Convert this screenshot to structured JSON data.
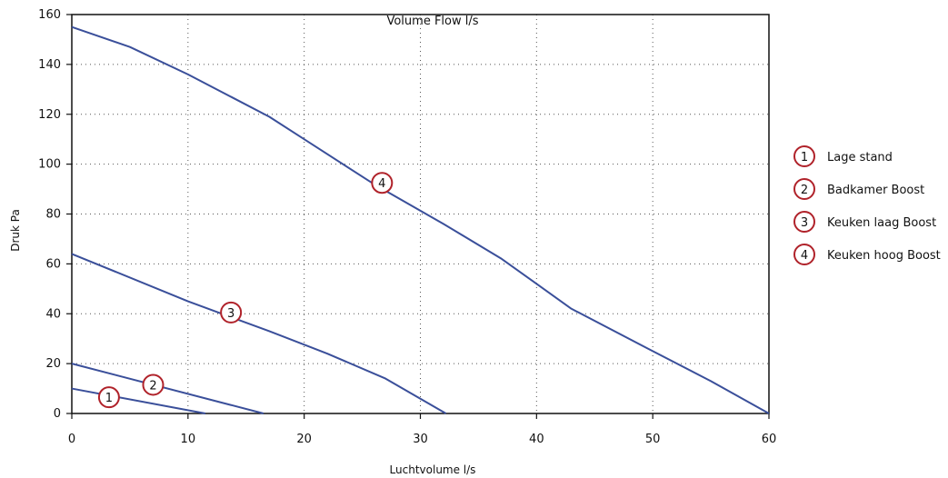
{
  "chart_data": {
    "type": "line",
    "title": "Volume Flow l/s",
    "xlabel": "Luchtvolume l/s",
    "ylabel": "Druk Pa",
    "xlim": [
      0,
      60
    ],
    "ylim": [
      0,
      160
    ],
    "xticks": [
      0,
      10,
      20,
      30,
      40,
      50,
      60
    ],
    "yticks": [
      0,
      20,
      40,
      60,
      80,
      100,
      120,
      140,
      160
    ],
    "grid": "dotted",
    "legend_position": "right",
    "line_color": "#3a4f9a",
    "marker_color": "#b0222a",
    "series": [
      {
        "marker": "1",
        "name": "Lage stand",
        "x": [
          0,
          11.5
        ],
        "y": [
          10,
          0
        ],
        "marker_pos": [
          3.2,
          6.5
        ]
      },
      {
        "marker": "2",
        "name": "Badkamer Boost",
        "x": [
          0,
          16.5
        ],
        "y": [
          20,
          0
        ],
        "marker_pos": [
          7.0,
          11.5
        ]
      },
      {
        "marker": "3",
        "name": "Keuken laag Boost",
        "x": [
          0,
          10,
          17,
          22,
          27,
          32.2
        ],
        "y": [
          64,
          45,
          33,
          24,
          14,
          0
        ],
        "marker_pos": [
          13.7,
          40.5
        ]
      },
      {
        "marker": "4",
        "name": "Keuken hoog Boost",
        "x": [
          0,
          5,
          10,
          17,
          20,
          26,
          32,
          37,
          40,
          43,
          50,
          55,
          60
        ],
        "y": [
          155,
          147,
          136,
          119,
          110,
          92,
          76,
          62,
          52,
          42,
          25,
          13,
          0
        ],
        "marker_pos": [
          26.7,
          92.5
        ]
      }
    ]
  }
}
